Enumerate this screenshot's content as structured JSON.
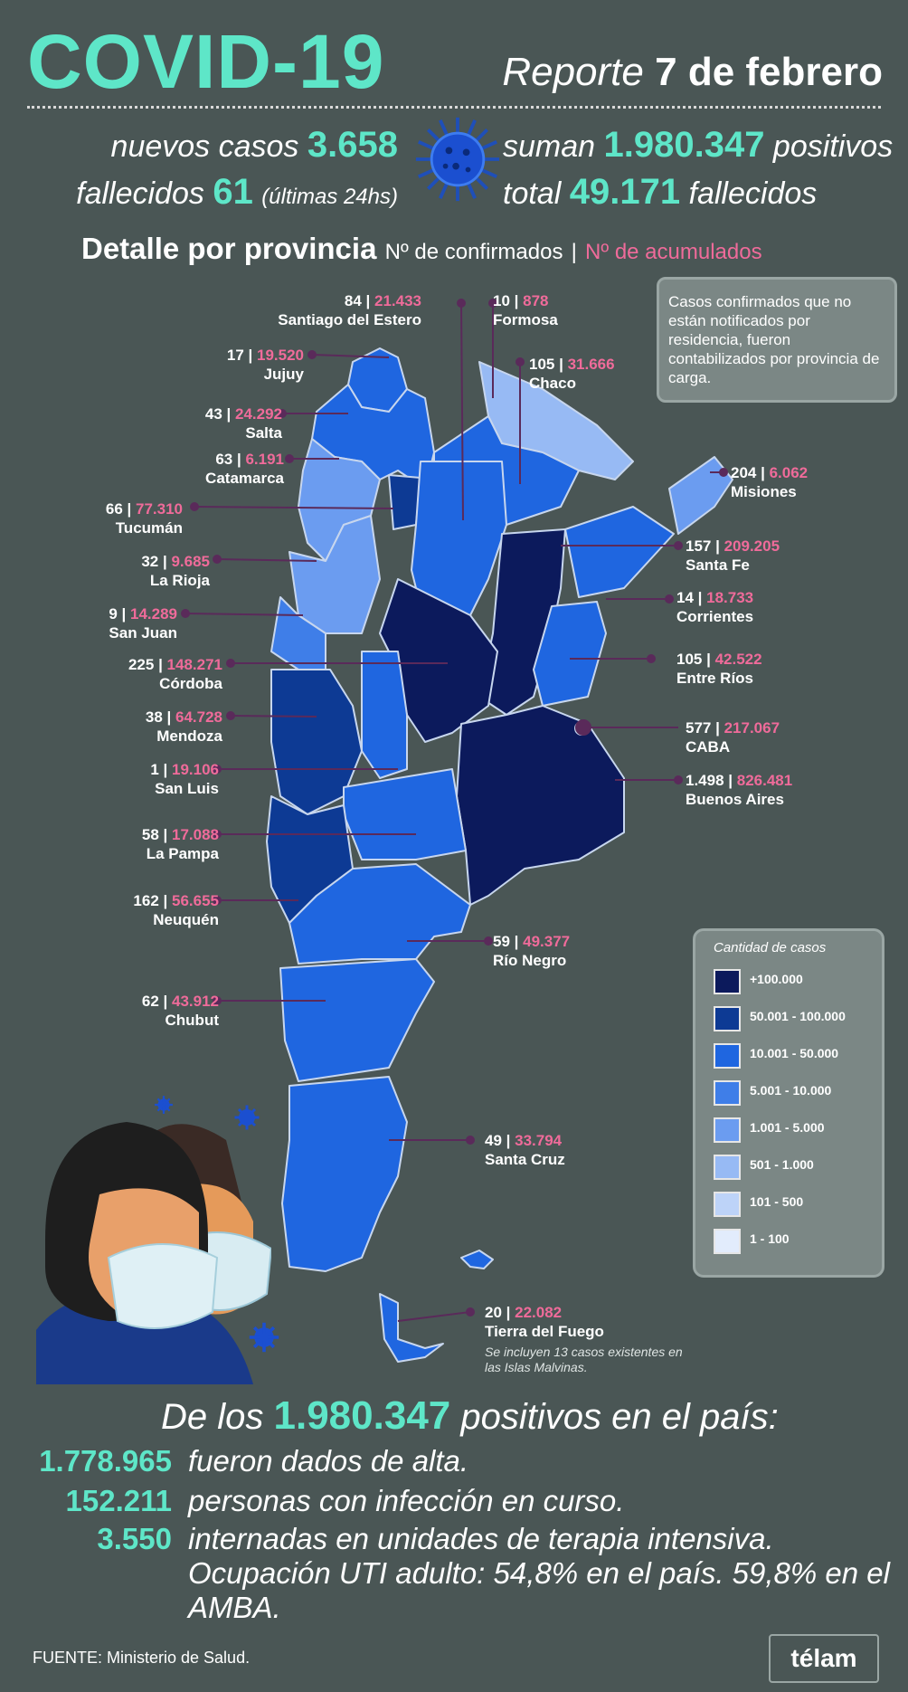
{
  "header": {
    "title": "COVID-19",
    "report_prefix": "Reporte",
    "report_date": "7 de febrero"
  },
  "stats": {
    "nuevos_label": "nuevos casos",
    "nuevos_value": "3.658",
    "fallecidos_label": "fallecidos",
    "fallecidos_value": "61",
    "fallecidos_suffix": "(últimas 24hs)",
    "suman_label": "suman",
    "suman_value": "1.980.347",
    "suman_suffix": "positivos",
    "total_label": "total",
    "total_value": "49.171",
    "total_suffix": "fallecidos"
  },
  "detail": {
    "title": "Detalle por provincia",
    "confirmed_label": "Nº de confirmados",
    "separator": "|",
    "accumulated_label": "Nº de acumulados"
  },
  "note": "Casos confirmados que no están notificados por residencia, fueron contabilizados por provincia de carga.",
  "provinces": [
    {
      "name": "Santiago del Estero",
      "new": "84",
      "total": "21.433"
    },
    {
      "name": "Formosa",
      "new": "10",
      "total": "878"
    },
    {
      "name": "Jujuy",
      "new": "17",
      "total": "19.520"
    },
    {
      "name": "Chaco",
      "new": "105",
      "total": "31.666"
    },
    {
      "name": "Salta",
      "new": "43",
      "total": "24.292"
    },
    {
      "name": "Catamarca",
      "new": "63",
      "total": "6.191"
    },
    {
      "name": "Misiones",
      "new": "204",
      "total": "6.062"
    },
    {
      "name": "Tucumán",
      "new": "66",
      "total": "77.310"
    },
    {
      "name": "Santa Fe",
      "new": "157",
      "total": "209.205"
    },
    {
      "name": "La Rioja",
      "new": "32",
      "total": "9.685"
    },
    {
      "name": "Corrientes",
      "new": "14",
      "total": "18.733"
    },
    {
      "name": "San Juan",
      "new": "9",
      "total": "14.289"
    },
    {
      "name": "Entre Ríos",
      "new": "105",
      "total": "42.522"
    },
    {
      "name": "Córdoba",
      "new": "225",
      "total": "148.271"
    },
    {
      "name": "CABA",
      "new": "577",
      "total": "217.067"
    },
    {
      "name": "Mendoza",
      "new": "38",
      "total": "64.728"
    },
    {
      "name": "Buenos Aires",
      "new": "1.498",
      "total": "826.481"
    },
    {
      "name": "San Luis",
      "new": "1",
      "total": "19.106"
    },
    {
      "name": "La Pampa",
      "new": "58",
      "total": "17.088"
    },
    {
      "name": "Neuquén",
      "new": "162",
      "total": "56.655"
    },
    {
      "name": "Río Negro",
      "new": "59",
      "total": "49.377"
    },
    {
      "name": "Chubut",
      "new": "62",
      "total": "43.912"
    },
    {
      "name": "Santa Cruz",
      "new": "49",
      "total": "33.794"
    },
    {
      "name": "Tierra del Fuego",
      "new": "20",
      "total": "22.082"
    }
  ],
  "malvinas_note": "Se incluyen 13 casos existentes en las Islas Malvinas.",
  "legend": {
    "title": "Cantidad de casos",
    "items": [
      {
        "label": "+100.000",
        "color": "#0c1a5c"
      },
      {
        "label": "50.001 - 100.000",
        "color": "#0d3a94"
      },
      {
        "label": "10.001 - 50.000",
        "color": "#1f66e0"
      },
      {
        "label": "5.001 - 10.000",
        "color": "#3f7ee8"
      },
      {
        "label": "1.001 - 5.000",
        "color": "#6b9cf0"
      },
      {
        "label": "501 - 1.000",
        "color": "#97baf4"
      },
      {
        "label": "101 - 500",
        "color": "#bdd3f8"
      },
      {
        "label": "1 - 100",
        "color": "#e2ecfc"
      }
    ]
  },
  "bottom": {
    "heading_pre": "De los",
    "heading_value": "1.980.347",
    "heading_post": "positivos en el país:",
    "rows": [
      {
        "value": "1.778.965",
        "text": "fueron dados de alta."
      },
      {
        "value": "152.211",
        "text": "personas con infección en curso."
      },
      {
        "value": "3.550",
        "text": "internadas en unidades de terapia intensiva."
      }
    ],
    "uti": "Ocupación UTI adulto: 54,8% en el país. 59,8% en el AMBA."
  },
  "footer": {
    "source": "FUENTE: Ministerio de Salud.",
    "logo": "télam"
  },
  "colors": {
    "accent": "#5ee6c8",
    "pink": "#ef6b9a",
    "background": "#4a5655"
  }
}
